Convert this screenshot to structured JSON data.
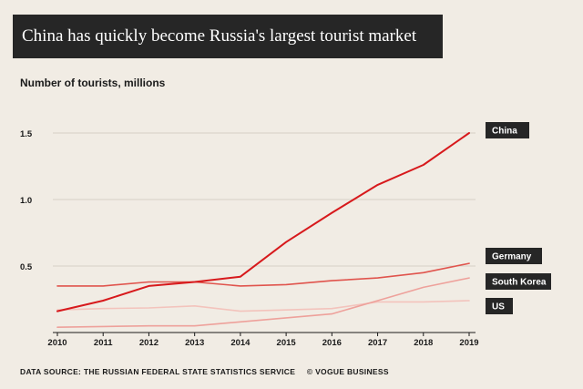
{
  "chart_data": {
    "type": "line",
    "title": "China has quickly become Russia's largest tourist market",
    "ylabel": "Number of tourists, millions",
    "xlabel": "",
    "x": [
      2010,
      2011,
      2012,
      2013,
      2014,
      2015,
      2016,
      2017,
      2018,
      2019
    ],
    "ylim": [
      0,
      1.5
    ],
    "yticks": [
      0.5,
      1.0,
      1.5
    ],
    "ytick_labels": [
      "0.5",
      "1.0",
      "1.5"
    ],
    "series": [
      {
        "name": "China",
        "color": "#d7191c",
        "values": [
          0.16,
          0.24,
          0.35,
          0.38,
          0.42,
          0.68,
          0.9,
          1.11,
          1.26,
          1.5
        ]
      },
      {
        "name": "Germany",
        "color": "#e0544d",
        "values": [
          0.35,
          0.35,
          0.38,
          0.38,
          0.35,
          0.36,
          0.39,
          0.41,
          0.45,
          0.52
        ]
      },
      {
        "name": "South Korea",
        "color": "#eea19b",
        "values": [
          0.04,
          0.045,
          0.05,
          0.05,
          0.08,
          0.11,
          0.14,
          0.24,
          0.34,
          0.41
        ]
      },
      {
        "name": "US",
        "color": "#f3c3bc",
        "values": [
          0.17,
          0.18,
          0.185,
          0.2,
          0.16,
          0.17,
          0.18,
          0.23,
          0.23,
          0.24
        ]
      }
    ],
    "legend": [
      "China",
      "Germany",
      "South Korea",
      "US"
    ],
    "grid": true
  },
  "footer": {
    "source": "DATA SOURCE: THE RUSSIAN FEDERAL STATE STATISTICS SERVICE",
    "credit": "© VOGUE BUSINESS"
  }
}
